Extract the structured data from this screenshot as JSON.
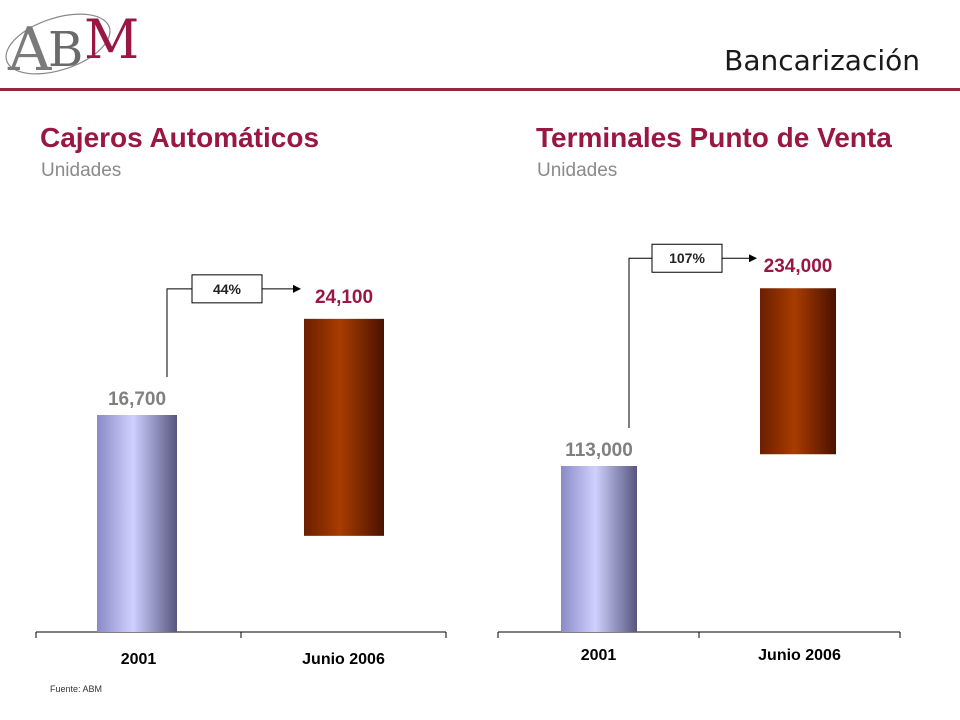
{
  "header": {
    "logo_text": "ABM",
    "title": "Bancarización"
  },
  "footer": {
    "source": "Fuente: ABM"
  },
  "colors": {
    "accent": "#9a1742",
    "rule": "#8e2a3e",
    "bar_2001": "#c7c7f2",
    "bar_2006": "#a23a00"
  },
  "chart_data": [
    {
      "type": "bar",
      "title": "Cajeros Automáticos",
      "subtitle": "Unidades",
      "categories": [
        "2001",
        "Junio 2006"
      ],
      "values": [
        16700,
        24100
      ],
      "value_labels": [
        "16,700",
        "24,100"
      ],
      "growth_label": "44%",
      "xlabel": "",
      "ylabel": ""
    },
    {
      "type": "bar",
      "title": "Terminales Punto de Venta",
      "subtitle": "Unidades",
      "categories": [
        "2001",
        "Junio 2006"
      ],
      "values": [
        113000,
        234000
      ],
      "value_labels": [
        "113,000",
        "234,000"
      ],
      "growth_label": "107%",
      "xlabel": "",
      "ylabel": ""
    }
  ]
}
